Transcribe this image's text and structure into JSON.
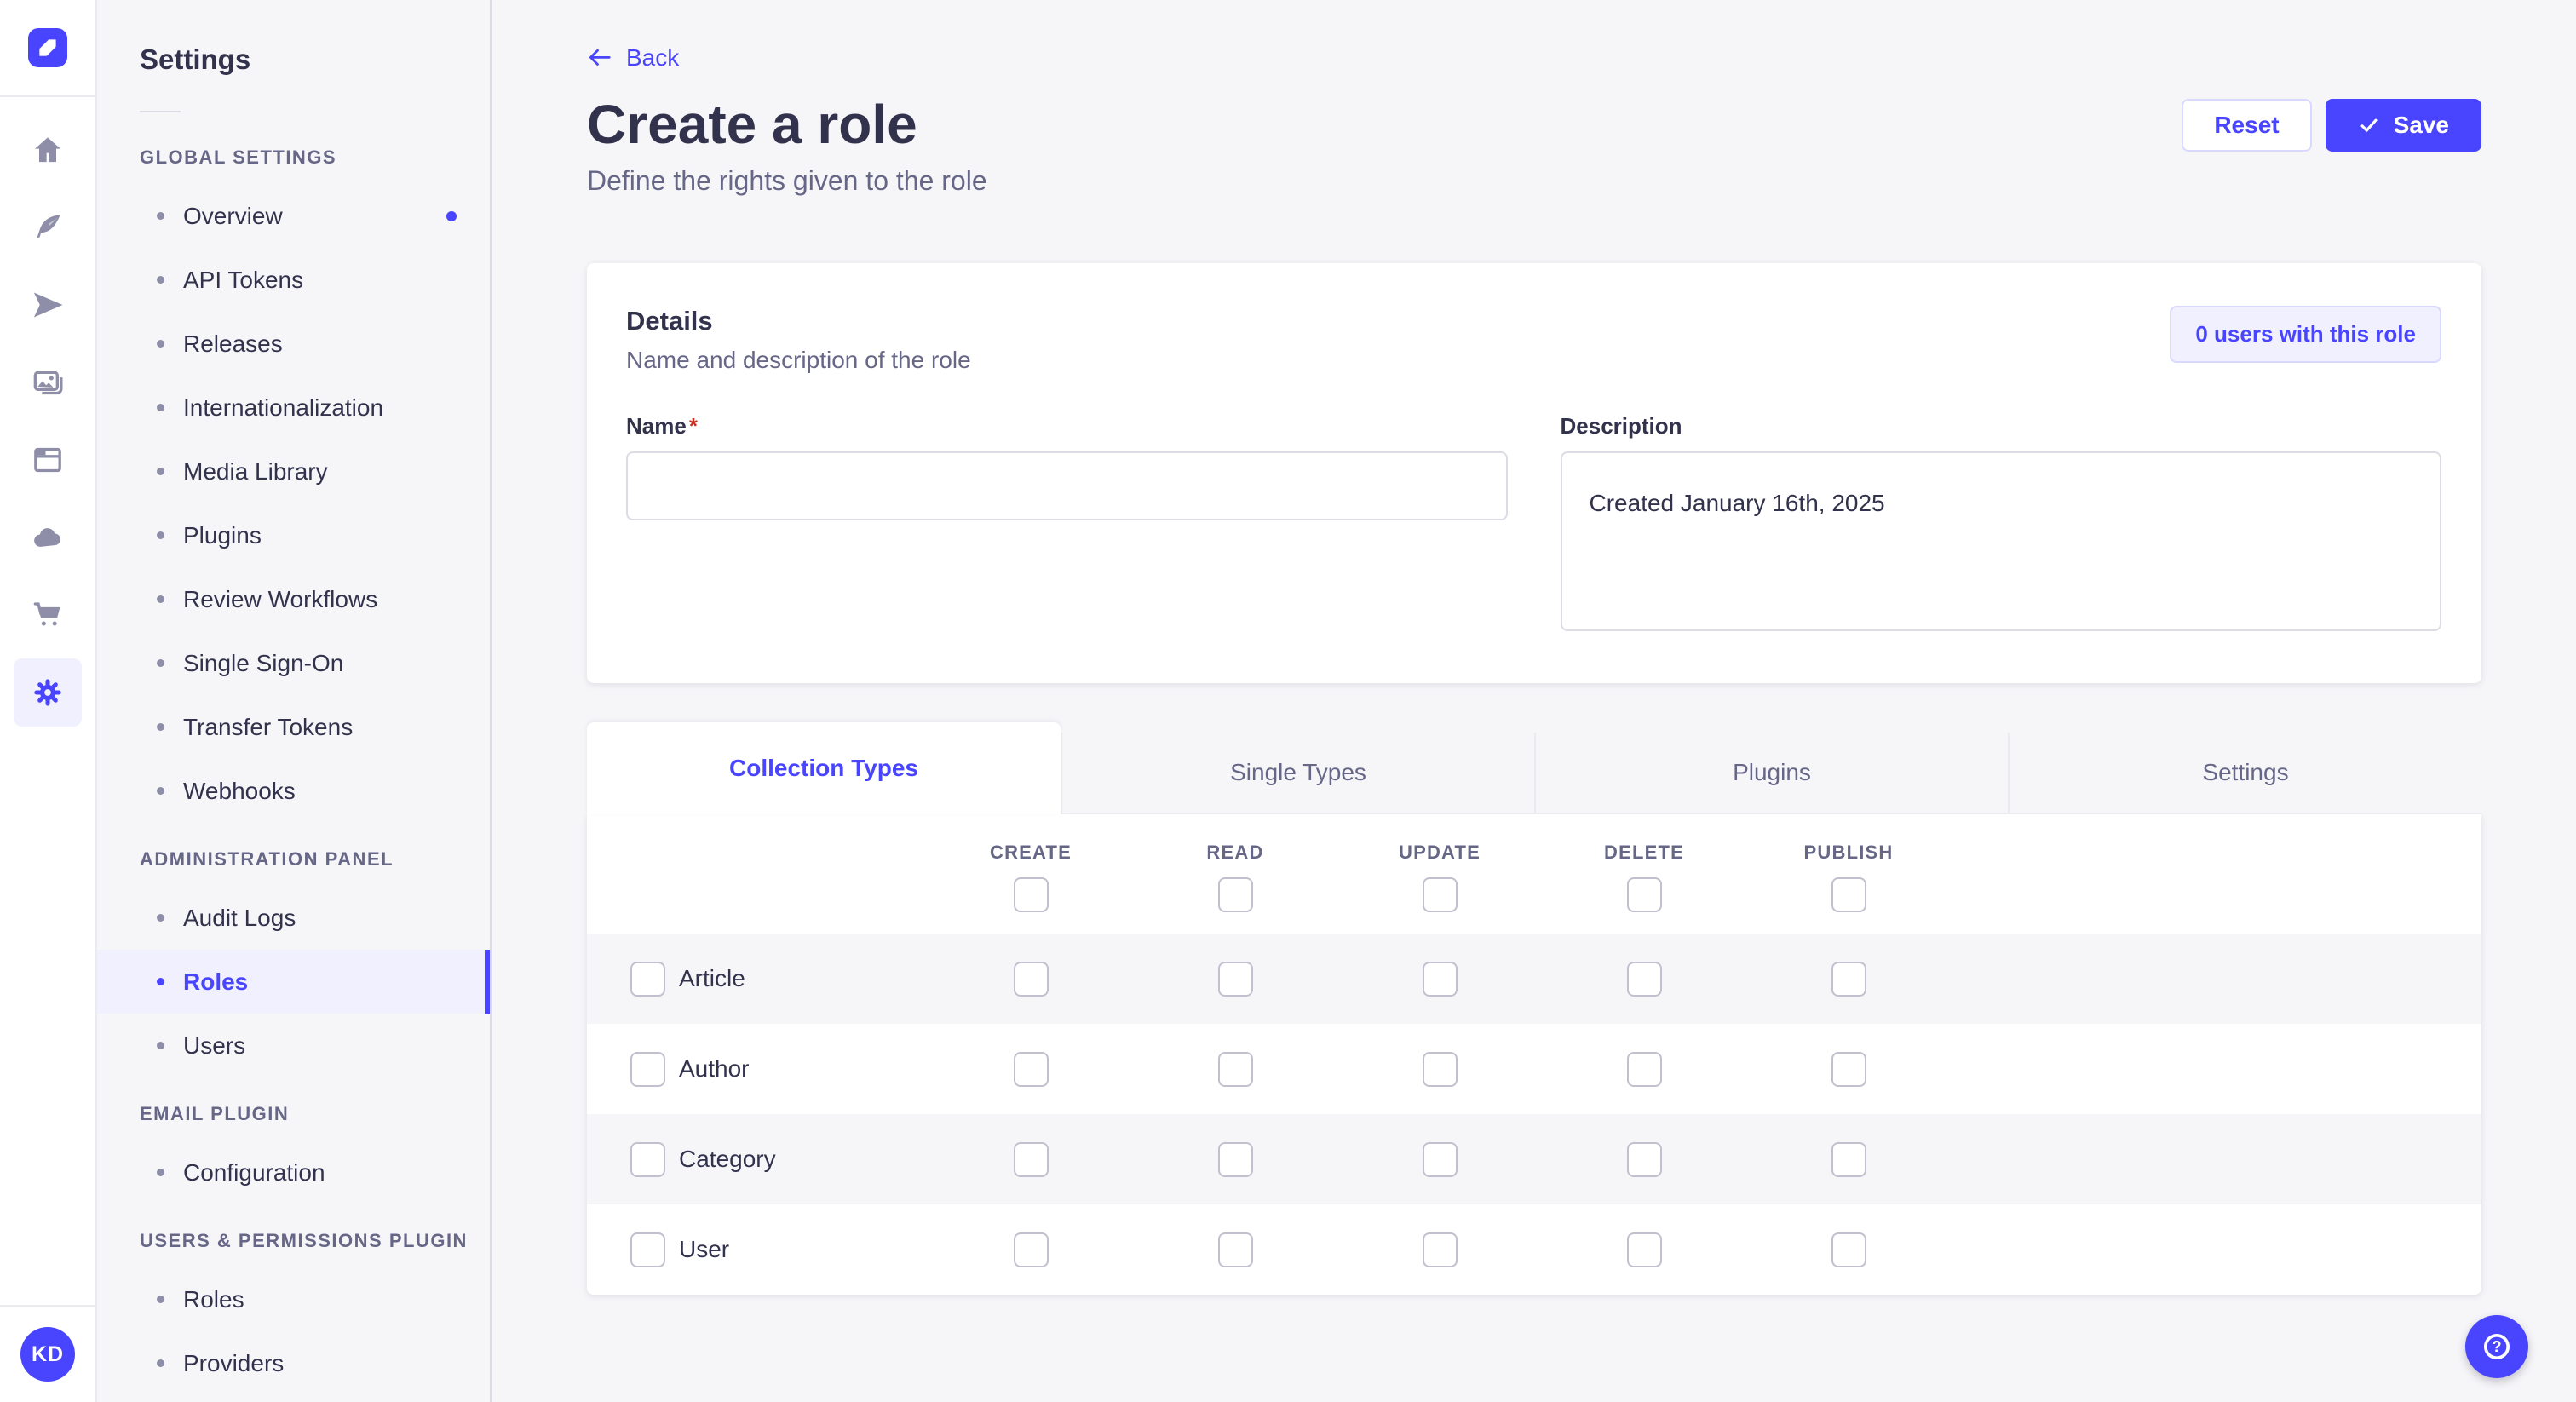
{
  "colors": {
    "primary": "#4945ff",
    "primary_light_bg": "#f0f0ff",
    "primary_border": "#d9d8ff",
    "page_bg": "#f6f6f9",
    "card_bg": "#ffffff",
    "border": "#eaeaef",
    "text_dark": "#32324d",
    "text_muted": "#666687",
    "icon_gray": "#8e8ea9",
    "required_red": "#d02b20"
  },
  "rail": {
    "avatar_initials": "KD"
  },
  "sidebar": {
    "title": "Settings",
    "sections": [
      {
        "label": "GLOBAL SETTINGS",
        "items": [
          {
            "label": "Overview",
            "notification": true
          },
          {
            "label": "API Tokens"
          },
          {
            "label": "Releases"
          },
          {
            "label": "Internationalization"
          },
          {
            "label": "Media Library"
          },
          {
            "label": "Plugins"
          },
          {
            "label": "Review Workflows"
          },
          {
            "label": "Single Sign-On"
          },
          {
            "label": "Transfer Tokens"
          },
          {
            "label": "Webhooks"
          }
        ]
      },
      {
        "label": "ADMINISTRATION PANEL",
        "items": [
          {
            "label": "Audit Logs"
          },
          {
            "label": "Roles",
            "active": true
          },
          {
            "label": "Users"
          }
        ]
      },
      {
        "label": "EMAIL PLUGIN",
        "items": [
          {
            "label": "Configuration"
          }
        ]
      },
      {
        "label": "USERS & PERMISSIONS PLUGIN",
        "items": [
          {
            "label": "Roles"
          },
          {
            "label": "Providers"
          }
        ]
      }
    ]
  },
  "header": {
    "back_label": "Back",
    "title": "Create a role",
    "subtitle": "Define the rights given to the role",
    "reset_label": "Reset",
    "save_label": "Save"
  },
  "details": {
    "title": "Details",
    "subtitle": "Name and description of the role",
    "users_badge": "0 users with this role",
    "name_label": "Name",
    "name_required_mark": "*",
    "name_value": "",
    "description_label": "Description",
    "description_value": "Created January 16th, 2025"
  },
  "permissions": {
    "tabs": [
      {
        "label": "Collection Types",
        "active": true
      },
      {
        "label": "Single Types"
      },
      {
        "label": "Plugins"
      },
      {
        "label": "Settings"
      }
    ],
    "columns": [
      "CREATE",
      "READ",
      "UPDATE",
      "DELETE",
      "PUBLISH"
    ],
    "rows": [
      {
        "label": "Article"
      },
      {
        "label": "Author"
      },
      {
        "label": "Category"
      },
      {
        "label": "User"
      }
    ],
    "all_checkboxes_checked": false
  }
}
